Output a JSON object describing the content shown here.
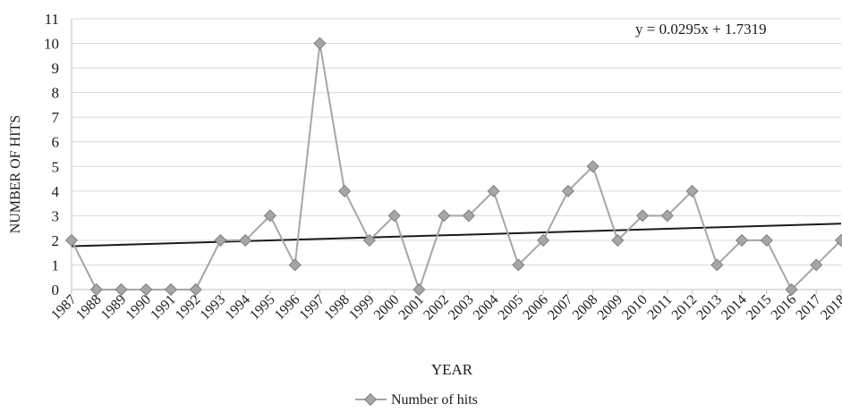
{
  "chart_data": {
    "type": "line",
    "title": "",
    "xlabel": "YEAR",
    "ylabel": "NUMBER OF HITS",
    "ylim": [
      0,
      11
    ],
    "yticks": [
      0,
      1,
      2,
      3,
      4,
      5,
      6,
      7,
      8,
      9,
      10,
      11
    ],
    "grid": true,
    "legend_position": "bottom",
    "categories": [
      "1987",
      "1988",
      "1989",
      "1990",
      "1991",
      "1992",
      "1993",
      "1994",
      "1995",
      "1996",
      "1997",
      "1998",
      "1999",
      "2000",
      "2001",
      "2002",
      "2003",
      "2004",
      "2005",
      "2006",
      "2007",
      "2008",
      "2009",
      "2010",
      "2011",
      "2012",
      "2013",
      "2014",
      "2015",
      "2016",
      "2017",
      "2018"
    ],
    "series": [
      {
        "name": "Number of hits",
        "values": [
          2,
          0,
          0,
          0,
          0,
          0,
          2,
          2,
          3,
          1,
          10,
          4,
          2,
          3,
          0,
          3,
          3,
          4,
          1,
          2,
          4,
          5,
          2,
          3,
          3,
          4,
          1,
          2,
          2,
          0,
          1,
          2
        ],
        "color": "#a6a6a6",
        "marker": "diamond"
      }
    ],
    "trendline": {
      "type": "linear",
      "slope": 0.0295,
      "intercept": 1.7319,
      "equation": "y = 0.0295x + 1.7319",
      "color": "#1a1a1a"
    },
    "colors": {
      "grid": "#d9d9d9",
      "axis": "#bfbfbf",
      "marker_fill": "#a6a6a6",
      "marker_stroke": "#7f7f7f"
    }
  }
}
